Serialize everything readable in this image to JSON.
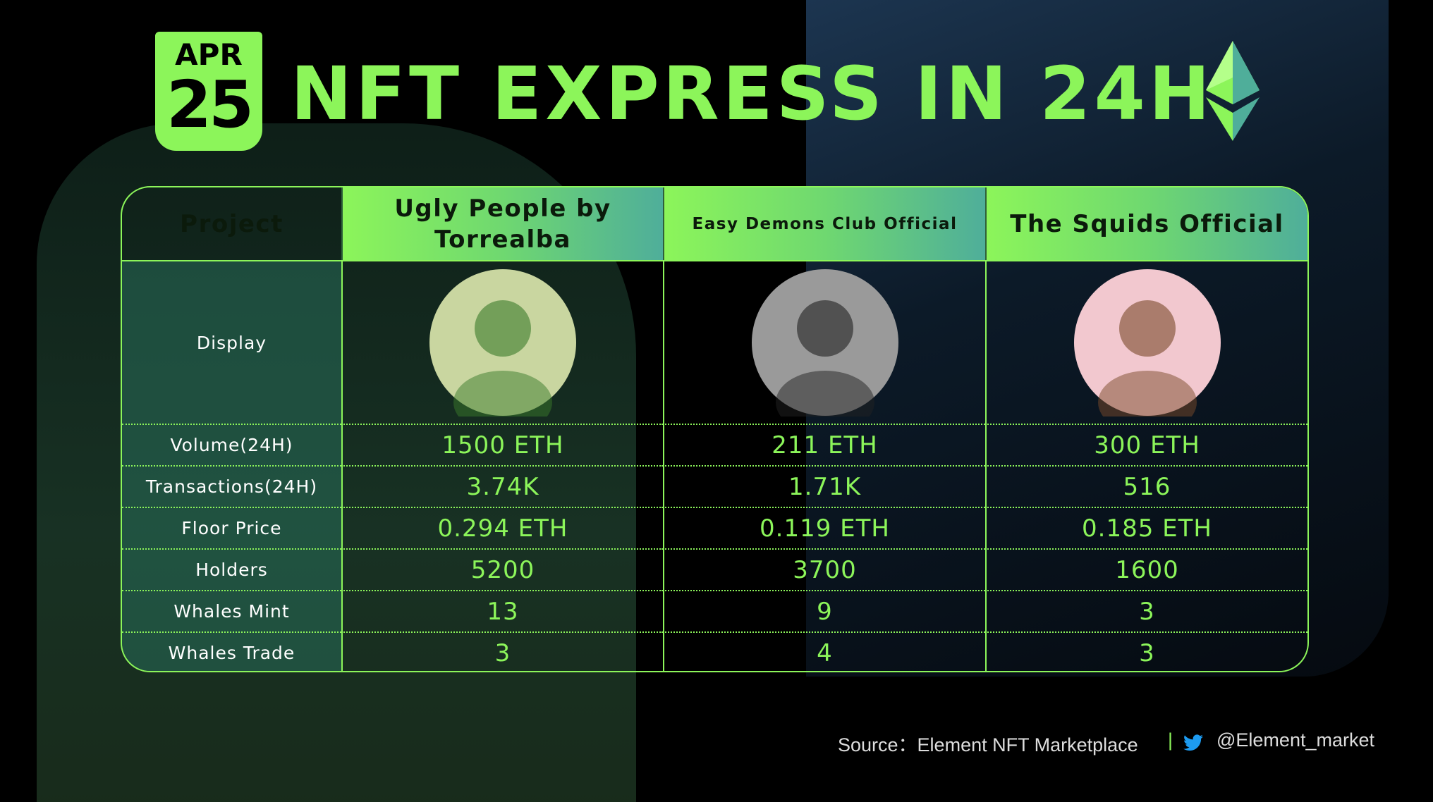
{
  "header": {
    "month": "APR",
    "day": "25",
    "title": "NFT EXPRESS IN 24H"
  },
  "table": {
    "columns": [
      "Project",
      "Ugly People by Torrealba",
      "Easy Demons Club Official",
      "The Squids Official"
    ],
    "display_label": "Display",
    "rows": [
      [
        "Volume(24H)",
        "1500 ETH",
        "211 ETH",
        "300 ETH"
      ],
      [
        "Transactions(24H)",
        "3.74K",
        "1.71K",
        "516"
      ],
      [
        "Floor Price",
        "0.294 ETH",
        "0.119 ETH",
        "0.185 ETH"
      ],
      [
        "Holders",
        "5200",
        "3700",
        "1600"
      ],
      [
        "Whales Mint",
        "13",
        "9",
        "3"
      ],
      [
        "Whales Trade",
        "3",
        "4",
        "3"
      ]
    ]
  },
  "footer": {
    "source": "Source：Element NFT Marketplace",
    "separator": "|",
    "handle": "@Element_market"
  }
}
